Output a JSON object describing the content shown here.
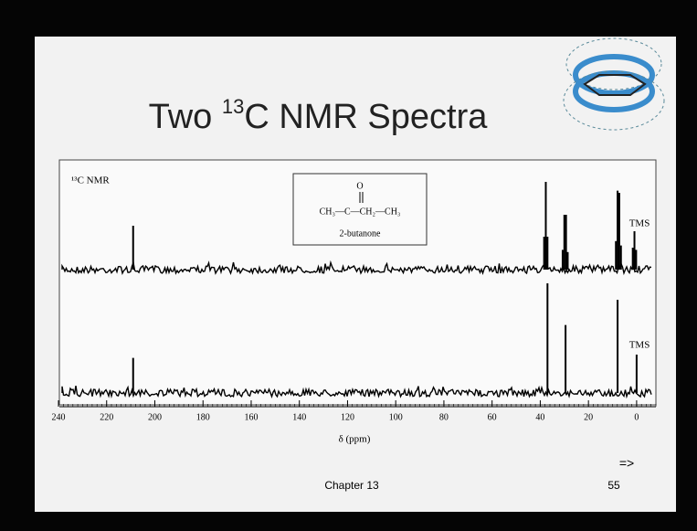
{
  "slide": {
    "title_pre": "Two ",
    "title_sup": "13",
    "title_post": "C NMR Spectra",
    "footer": "Chapter 13",
    "page": "55",
    "arrow": "=>"
  },
  "chart_data": {
    "type": "stem",
    "label": "¹³C NMR",
    "molecule": {
      "oxygen": "O",
      "formula": "CH₃—C—CH₂—CH₃",
      "name": "2-butanone"
    },
    "xlabel": "δ (ppm)",
    "xlim": [
      240,
      -8
    ],
    "xticks": [
      240,
      220,
      200,
      180,
      160,
      140,
      120,
      100,
      80,
      60,
      40,
      20,
      0
    ],
    "ylim": [
      0,
      100
    ],
    "color": "#000000",
    "series": [
      {
        "x": [
          209,
          38.4,
          37.7,
          37.0,
          30.7,
          30.0,
          29.3,
          28.6,
          8.6,
          7.9,
          7.2,
          6.5,
          1.6,
          0.9,
          0.2
        ],
        "values": [
          40,
          30,
          80,
          30,
          18,
          50,
          50,
          16,
          26,
          72,
          70,
          22,
          20,
          35,
          18
        ],
        "annotation": "TMS"
      },
      {
        "x": [
          209,
          37,
          29.5,
          7.9,
          0
        ],
        "values": [
          32,
          100,
          62,
          85,
          35
        ],
        "annotation": "TMS"
      }
    ]
  }
}
